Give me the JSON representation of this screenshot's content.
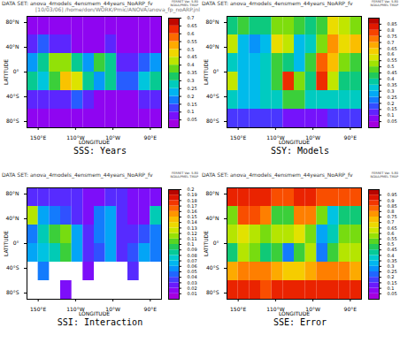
{
  "chart_data": [
    {
      "type": "heatmap",
      "title": "SSS: Years",
      "subtitle": "DATA SET: anova_4models_4ensmem_44years_NoARP_fv",
      "annotations": [
        "FERRET Ver. 5.80",
        "NOAA/PMEL TMAP",
        "[10/03/06] /home/don/WORK/Pmic/ANOVA/anova_fp_noARP.jnl"
      ],
      "xlabel": "LONGITUDE",
      "ylabel": "LATITUDE",
      "xlim": [
        120,
        480
      ],
      "ylim": [
        -90,
        90
      ],
      "xticks": [
        {
          "value": 150,
          "label": "150°E"
        },
        {
          "value": 250,
          "label": "110°W"
        },
        {
          "value": 350,
          "label": "10°W"
        },
        {
          "value": 450,
          "label": "90°E"
        }
      ],
      "yticks": [
        {
          "value": 80,
          "label": "80°N"
        },
        {
          "value": 40,
          "label": "40°N"
        },
        {
          "value": 0,
          "label": "0°"
        },
        {
          "value": -40,
          "label": "40°S"
        },
        {
          "value": -80,
          "label": "80°S"
        }
      ],
      "lon_edges": [
        120,
        150,
        180,
        210,
        240,
        270,
        300,
        330,
        360,
        390,
        420,
        450,
        480
      ],
      "lat_edges": [
        90,
        60,
        30,
        0,
        -30,
        -60,
        -90
      ],
      "cells": [
        [
          0.05,
          0.05,
          0.05,
          0.05,
          0.05,
          0.05,
          0.05,
          0.05,
          0.05,
          0.05,
          0.05,
          0.05
        ],
        [
          0.1,
          0.15,
          0.1,
          0.1,
          0.05,
          0.05,
          0.05,
          0.1,
          0.05,
          0.05,
          0.05,
          0.05
        ],
        [
          0.2,
          0.3,
          0.4,
          0.4,
          0.3,
          0.2,
          0.35,
          0.3,
          0.1,
          0.1,
          0.15,
          0.2
        ],
        [
          0.3,
          0.25,
          0.35,
          0.5,
          0.45,
          0.3,
          0.2,
          0.3,
          0.15,
          0.15,
          0.25,
          0.3
        ],
        [
          0.1,
          0.1,
          0.1,
          0.1,
          0.15,
          0.1,
          0.05,
          0.05,
          0.05,
          0.05,
          0.1,
          0.1
        ],
        [
          0.05,
          0.05,
          0.05,
          0.05,
          0.05,
          0.05,
          0.05,
          0.05,
          0.05,
          0.05,
          0.05,
          0.05
        ]
      ],
      "colorbar": {
        "range": [
          0,
          0.7
        ],
        "ticks": [
          0.05,
          0.1,
          0.15,
          0.2,
          0.25,
          0.3,
          0.35,
          0.4,
          0.45,
          0.5,
          0.55,
          0.6,
          0.65,
          0.7
        ]
      }
    },
    {
      "type": "heatmap",
      "title": "SSY: Models",
      "subtitle": "DATA SET: anova_4models_4ensmem_44years_NoARP_fv",
      "annotations": [
        "FERRET Ver. 5.80",
        "NOAA/PMEL TMAP"
      ],
      "xlabel": "LONGITUDE",
      "ylabel": "LATITUDE",
      "xlim": [
        120,
        480
      ],
      "ylim": [
        -90,
        90
      ],
      "xticks": [
        {
          "value": 150,
          "label": "150°E"
        },
        {
          "value": 250,
          "label": "110°W"
        },
        {
          "value": 350,
          "label": "10°W"
        },
        {
          "value": 450,
          "label": "90°E"
        }
      ],
      "yticks": [
        {
          "value": 80,
          "label": "80°N"
        },
        {
          "value": 40,
          "label": "40°N"
        },
        {
          "value": 0,
          "label": "0°"
        },
        {
          "value": -40,
          "label": "40°S"
        },
        {
          "value": -80,
          "label": "80°S"
        }
      ],
      "lon_edges": [
        120,
        150,
        180,
        210,
        240,
        270,
        300,
        330,
        360,
        390,
        420,
        450,
        480
      ],
      "lat_edges": [
        90,
        60,
        30,
        0,
        -30,
        -60,
        -90
      ],
      "cells": [
        [
          0.4,
          0.45,
          0.4,
          0.4,
          0.5,
          0.5,
          0.45,
          0.4,
          0.45,
          0.6,
          0.55,
          0.5
        ],
        [
          0.55,
          0.3,
          0.25,
          0.3,
          0.6,
          0.55,
          0.3,
          0.35,
          0.5,
          0.7,
          0.6,
          0.65
        ],
        [
          0.35,
          0.3,
          0.3,
          0.35,
          0.45,
          0.4,
          0.3,
          0.45,
          0.75,
          0.65,
          0.5,
          0.45
        ],
        [
          0.55,
          0.3,
          0.3,
          0.35,
          0.45,
          0.8,
          0.5,
          0.4,
          0.8,
          0.55,
          0.4,
          0.4
        ],
        [
          0.35,
          0.3,
          0.3,
          0.35,
          0.35,
          0.45,
          0.45,
          0.35,
          0.35,
          0.35,
          0.35,
          0.35
        ],
        [
          0.15,
          0.15,
          0.15,
          0.15,
          0.15,
          0.1,
          0.1,
          0.1,
          0.1,
          0.15,
          0.15,
          0.15
        ]
      ],
      "colorbar": {
        "range": [
          0,
          0.9
        ],
        "ticks": [
          0.05,
          0.1,
          0.15,
          0.2,
          0.25,
          0.3,
          0.35,
          0.4,
          0.45,
          0.5,
          0.55,
          0.6,
          0.65,
          0.7,
          0.75,
          0.8,
          0.85
        ]
      }
    },
    {
      "type": "heatmap",
      "title": "SSI: Interaction",
      "subtitle": "DATA SET: anova_4models_4ensmem_44years_NoARP_fv",
      "annotations": [
        "FERRET Ver. 5.80",
        "NOAA/PMEL TMAP"
      ],
      "xlabel": "LONGITUDE",
      "ylabel": "LATITUDE",
      "xlim": [
        120,
        480
      ],
      "ylim": [
        -90,
        90
      ],
      "xticks": [
        {
          "value": 150,
          "label": "150°E"
        },
        {
          "value": 250,
          "label": "110°W"
        },
        {
          "value": 350,
          "label": "10°W"
        },
        {
          "value": 450,
          "label": "90°E"
        }
      ],
      "yticks": [
        {
          "value": 80,
          "label": "80°N"
        },
        {
          "value": 40,
          "label": "40°N"
        },
        {
          "value": 0,
          "label": "0°"
        },
        {
          "value": -40,
          "label": "40°S"
        },
        {
          "value": -80,
          "label": "80°S"
        }
      ],
      "lon_edges": [
        120,
        150,
        180,
        210,
        240,
        270,
        300,
        330,
        360,
        390,
        420,
        450,
        480
      ],
      "lat_edges": [
        90,
        60,
        30,
        0,
        -30,
        -60,
        -90
      ],
      "cells": [
        [
          0.03,
          0.03,
          0.03,
          0.03,
          0.03,
          0.02,
          0.02,
          0.03,
          0.03,
          0.02,
          0.02,
          0.02
        ],
        [
          0.12,
          0.06,
          0.05,
          0.04,
          0.03,
          0.02,
          0.05,
          0.06,
          0.03,
          0.02,
          0.02,
          0.08
        ],
        [
          0.05,
          0.08,
          0.1,
          0.11,
          0.06,
          0.03,
          0.05,
          0.06,
          0.03,
          0.03,
          0.04,
          0.05
        ],
        [
          0.06,
          0.07,
          0.08,
          0.1,
          0.06,
          0.03,
          0.04,
          0.06,
          0.03,
          0.04,
          0.06,
          0.05
        ],
        [
          null,
          0.05,
          null,
          null,
          null,
          0.02,
          null,
          null,
          null,
          0.03,
          null,
          null
        ],
        [
          null,
          null,
          null,
          0.02,
          null,
          null,
          null,
          null,
          null,
          null,
          null,
          null
        ]
      ],
      "colorbar": {
        "range": [
          0,
          0.2
        ],
        "ticks": [
          0.01,
          0.02,
          0.03,
          0.04,
          0.05,
          0.06,
          0.07,
          0.08,
          0.09,
          0.1,
          0.11,
          0.12,
          0.13,
          0.14,
          0.15,
          0.16,
          0.17,
          0.18,
          0.19,
          0.2
        ]
      }
    },
    {
      "type": "heatmap",
      "title": "SSE: Error",
      "subtitle": "DATA SET: anova_4models_4ensmem_44years_NoARP_fv",
      "annotations": [
        "FERRET Ver. 5.80",
        "NOAA/PMEL TMAP"
      ],
      "xlabel": "LONGITUDE",
      "ylabel": "LATITUDE",
      "xlim": [
        120,
        480
      ],
      "ylim": [
        -90,
        90
      ],
      "xticks": [
        {
          "value": 150,
          "label": "150°E"
        },
        {
          "value": 250,
          "label": "110°W"
        },
        {
          "value": 350,
          "label": "10°W"
        },
        {
          "value": 450,
          "label": "90°E"
        }
      ],
      "yticks": [
        {
          "value": 80,
          "label": "80°N"
        },
        {
          "value": 40,
          "label": "40°N"
        },
        {
          "value": 0,
          "label": "0°"
        },
        {
          "value": -40,
          "label": "40°S"
        },
        {
          "value": -80,
          "label": "80°S"
        }
      ],
      "lon_edges": [
        120,
        150,
        180,
        210,
        240,
        270,
        300,
        330,
        360,
        390,
        420,
        450,
        480
      ],
      "lat_edges": [
        90,
        60,
        30,
        0,
        -30,
        -60,
        -90
      ],
      "cells": [
        [
          0.9,
          0.9,
          0.9,
          0.9,
          0.85,
          0.85,
          0.9,
          0.9,
          0.85,
          0.85,
          0.85,
          0.85
        ],
        [
          0.55,
          0.85,
          0.85,
          0.8,
          0.5,
          0.5,
          0.8,
          0.8,
          0.55,
          0.35,
          0.45,
          0.45
        ],
        [
          0.6,
          0.65,
          0.6,
          0.55,
          0.6,
          0.6,
          0.65,
          0.55,
          0.3,
          0.4,
          0.55,
          0.55
        ],
        [
          0.45,
          0.6,
          0.55,
          0.45,
          0.5,
          0.25,
          0.5,
          0.6,
          0.25,
          0.5,
          0.6,
          0.6
        ],
        [
          0.75,
          0.8,
          0.8,
          0.8,
          0.75,
          0.7,
          0.7,
          0.75,
          0.8,
          0.8,
          0.8,
          0.75
        ],
        [
          0.9,
          0.9,
          0.9,
          0.85,
          0.9,
          0.9,
          0.9,
          0.9,
          0.9,
          0.9,
          0.9,
          0.9
        ]
      ],
      "colorbar": {
        "range": [
          0,
          1
        ],
        "ticks": [
          0.05,
          0.1,
          0.15,
          0.2,
          0.25,
          0.3,
          0.35,
          0.4,
          0.45,
          0.5,
          0.55,
          0.6,
          0.65,
          0.7,
          0.75,
          0.8,
          0.85,
          0.9,
          0.95
        ]
      }
    }
  ]
}
